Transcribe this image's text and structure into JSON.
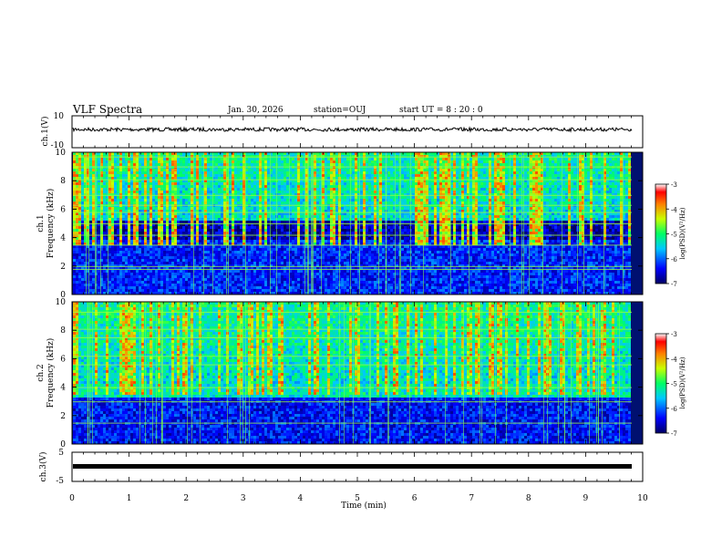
{
  "header": {
    "title": "VLF Spectra",
    "date": "Jan. 30, 2026",
    "station": "station=OUJ",
    "start_ut": "start UT =  8 : 20 : 0"
  },
  "chart_data": [
    {
      "type": "line",
      "id": "ch1-waveform",
      "ylabel": "ch.1(V)",
      "ylim": [
        -10,
        10
      ],
      "ytick_labels": [
        "10",
        "-10"
      ],
      "x": [
        0,
        9.85
      ],
      "y_level": 0,
      "note_values": "noisy trace around 0 V"
    },
    {
      "type": "heatmap",
      "id": "ch1-spectrogram",
      "ylabel": "ch.1\nFrequency (kHz)",
      "ylim": [
        0,
        10
      ],
      "ytick_labels": [
        "0",
        "2",
        "4",
        "6",
        "8",
        "10"
      ],
      "colorbar": {
        "label": "log(PSD)(V²/Hz)",
        "range": [
          -7,
          -3
        ],
        "tick_labels": [
          "-3",
          "-4",
          "-5",
          "-6",
          "-7"
        ]
      }
    },
    {
      "type": "heatmap",
      "id": "ch2-spectrogram",
      "ylabel": "ch.2\nFrequency (kHz)",
      "ylim": [
        0,
        10
      ],
      "ytick_labels": [
        "0",
        "2",
        "4",
        "6",
        "8",
        "10"
      ],
      "colorbar": {
        "label": "log(PSD)(V²/Hz)",
        "range": [
          -7,
          -3
        ],
        "tick_labels": [
          "-3",
          "-4",
          "-5",
          "-6",
          "-7"
        ]
      }
    },
    {
      "type": "line",
      "id": "ch3-waveform",
      "ylabel": "ch.3(V)",
      "ylim": [
        -5,
        5
      ],
      "ytick_labels": [
        "5",
        "-5"
      ],
      "x": [
        0,
        9.85
      ],
      "y_level": -1.8
    }
  ],
  "xaxis": {
    "xlabel": "Time (min)",
    "xlim": [
      0,
      10
    ],
    "tick_labels": [
      "0",
      "1",
      "2",
      "3",
      "4",
      "5",
      "6",
      "7",
      "8",
      "9",
      "10"
    ]
  }
}
